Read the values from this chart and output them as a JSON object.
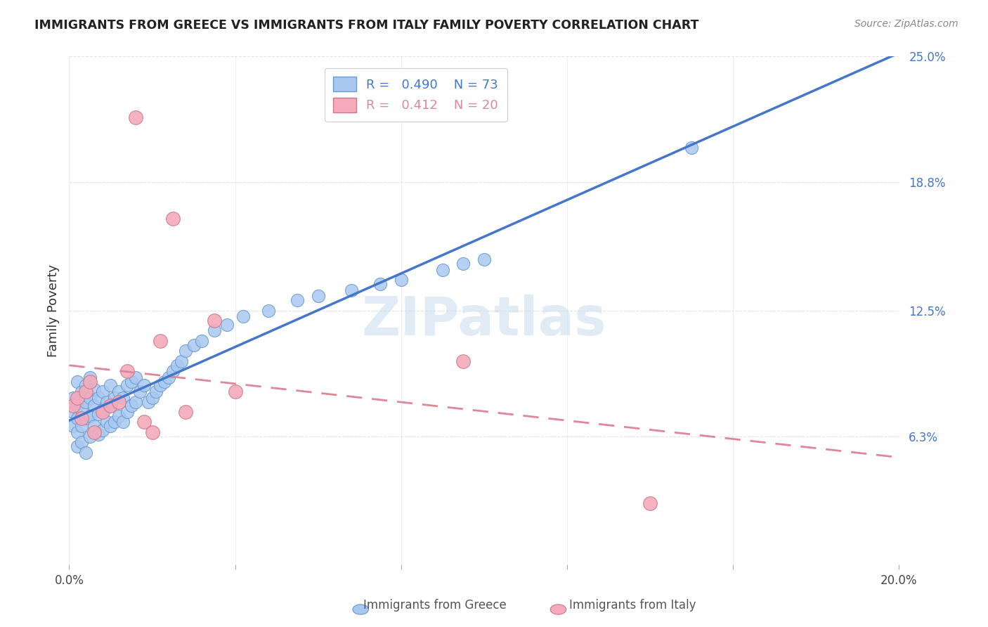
{
  "title": "IMMIGRANTS FROM GREECE VS IMMIGRANTS FROM ITALY FAMILY POVERTY CORRELATION CHART",
  "source": "Source: ZipAtlas.com",
  "ylabel": "Family Poverty",
  "watermark": "ZIPatlas",
  "xlim": [
    0.0,
    0.2
  ],
  "ylim": [
    0.0,
    0.25
  ],
  "xtick_positions": [
    0.0,
    0.04,
    0.08,
    0.12,
    0.16,
    0.2
  ],
  "xtick_labels": [
    "0.0%",
    "",
    "",
    "",
    "",
    "20.0%"
  ],
  "ytick_vals_right": [
    0.25,
    0.188,
    0.125,
    0.063
  ],
  "ytick_labels_right": [
    "25.0%",
    "18.8%",
    "12.5%",
    "6.3%"
  ],
  "greece_color": "#A8C8F0",
  "greece_edge_color": "#6699CC",
  "italy_color": "#F4AABB",
  "italy_edge_color": "#CC7788",
  "greece_line_color": "#4477CC",
  "italy_line_color": "#DD8899",
  "background_color": "#FFFFFF",
  "grid_color": "#DDDDDD",
  "greece_x": [
    0.001,
    0.001,
    0.001,
    0.002,
    0.002,
    0.002,
    0.002,
    0.002,
    0.003,
    0.003,
    0.003,
    0.003,
    0.004,
    0.004,
    0.004,
    0.004,
    0.005,
    0.005,
    0.005,
    0.005,
    0.006,
    0.006,
    0.006,
    0.007,
    0.007,
    0.007,
    0.008,
    0.008,
    0.008,
    0.009,
    0.009,
    0.01,
    0.01,
    0.01,
    0.011,
    0.011,
    0.012,
    0.012,
    0.013,
    0.013,
    0.014,
    0.014,
    0.015,
    0.015,
    0.016,
    0.016,
    0.017,
    0.018,
    0.019,
    0.02,
    0.021,
    0.022,
    0.023,
    0.024,
    0.025,
    0.026,
    0.027,
    0.028,
    0.03,
    0.032,
    0.035,
    0.038,
    0.042,
    0.048,
    0.055,
    0.06,
    0.068,
    0.075,
    0.08,
    0.09,
    0.095,
    0.1,
    0.15
  ],
  "greece_y": [
    0.075,
    0.082,
    0.068,
    0.09,
    0.078,
    0.072,
    0.065,
    0.058,
    0.085,
    0.076,
    0.068,
    0.06,
    0.088,
    0.08,
    0.072,
    0.055,
    0.092,
    0.082,
    0.073,
    0.063,
    0.086,
    0.078,
    0.068,
    0.082,
    0.074,
    0.064,
    0.085,
    0.076,
    0.066,
    0.08,
    0.07,
    0.088,
    0.078,
    0.068,
    0.082,
    0.07,
    0.085,
    0.073,
    0.082,
    0.07,
    0.088,
    0.075,
    0.09,
    0.078,
    0.092,
    0.08,
    0.085,
    0.088,
    0.08,
    0.082,
    0.085,
    0.088,
    0.09,
    0.092,
    0.095,
    0.098,
    0.1,
    0.105,
    0.108,
    0.11,
    0.115,
    0.118,
    0.122,
    0.125,
    0.13,
    0.132,
    0.135,
    0.138,
    0.14,
    0.145,
    0.148,
    0.15,
    0.205
  ],
  "italy_x": [
    0.001,
    0.002,
    0.003,
    0.004,
    0.005,
    0.006,
    0.008,
    0.01,
    0.012,
    0.014,
    0.016,
    0.018,
    0.02,
    0.022,
    0.025,
    0.028,
    0.035,
    0.04,
    0.14,
    0.095
  ],
  "italy_y": [
    0.078,
    0.082,
    0.072,
    0.085,
    0.09,
    0.065,
    0.075,
    0.078,
    0.08,
    0.095,
    0.22,
    0.07,
    0.065,
    0.11,
    0.17,
    0.075,
    0.12,
    0.085,
    0.03,
    0.1
  ]
}
